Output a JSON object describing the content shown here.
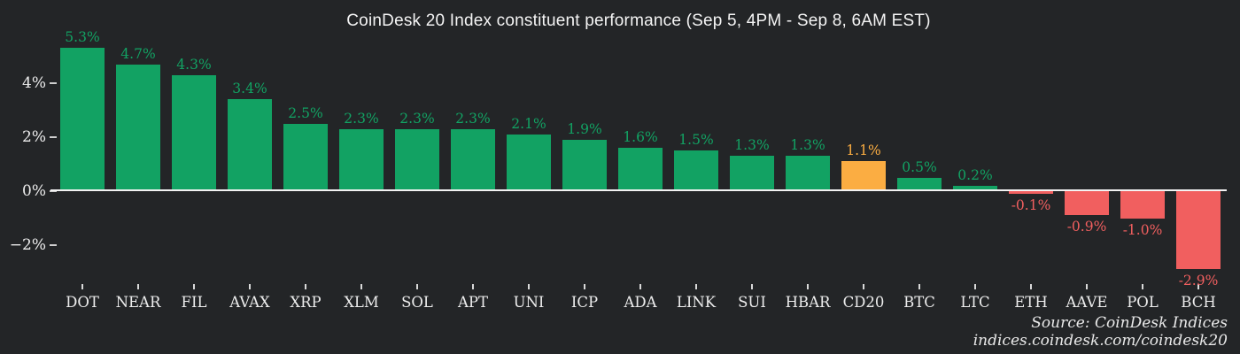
{
  "title": "CoinDesk 20 Index constituent performance (Sep 5, 4PM - Sep 8, 6AM EST)",
  "source": {
    "line1": "Source: CoinDesk Indices",
    "line2": "indices.coindesk.com/coindesk20"
  },
  "colors": {
    "background": "#232527",
    "positive": "#12a263",
    "negative": "#f15f5f",
    "highlight": "#fbad42",
    "axis_text": "#ededed",
    "baseline": "#f2f2f2",
    "title_text": "#f4f4f4"
  },
  "chart_data": {
    "type": "bar",
    "title": "CoinDesk 20 Index constituent performance (Sep 5, 4PM - Sep 8, 6AM EST)",
    "xlabel": "",
    "ylabel": "",
    "grid": false,
    "legend": "none",
    "categories": [
      "DOT",
      "NEAR",
      "FIL",
      "AVAX",
      "XRP",
      "XLM",
      "SOL",
      "APT",
      "UNI",
      "ICP",
      "ADA",
      "LINK",
      "SUI",
      "HBAR",
      "CD20",
      "BTC",
      "LTC",
      "ETH",
      "AAVE",
      "POL",
      "BCH"
    ],
    "values": [
      5.3,
      4.7,
      4.3,
      3.4,
      2.5,
      2.3,
      2.3,
      2.3,
      2.1,
      1.9,
      1.6,
      1.5,
      1.3,
      1.3,
      1.1,
      0.5,
      0.2,
      -0.1,
      -0.9,
      -1.0,
      -2.9
    ],
    "value_labels": [
      "5.3%",
      "4.7%",
      "4.3%",
      "3.4%",
      "2.5%",
      "2.3%",
      "2.3%",
      "2.3%",
      "2.1%",
      "1.9%",
      "1.6%",
      "1.5%",
      "1.3%",
      "1.3%",
      "1.1%",
      "0.5%",
      "0.2%",
      "-0.1%",
      "-0.9%",
      "-1.0%",
      "-2.9%"
    ],
    "highlight_category": "CD20",
    "yticks": {
      "labels": [
        "−2%",
        "0%",
        "2%",
        "4%"
      ],
      "values": [
        -2,
        0,
        2,
        4
      ]
    },
    "ylim": [
      -3.6,
      5.8
    ]
  }
}
